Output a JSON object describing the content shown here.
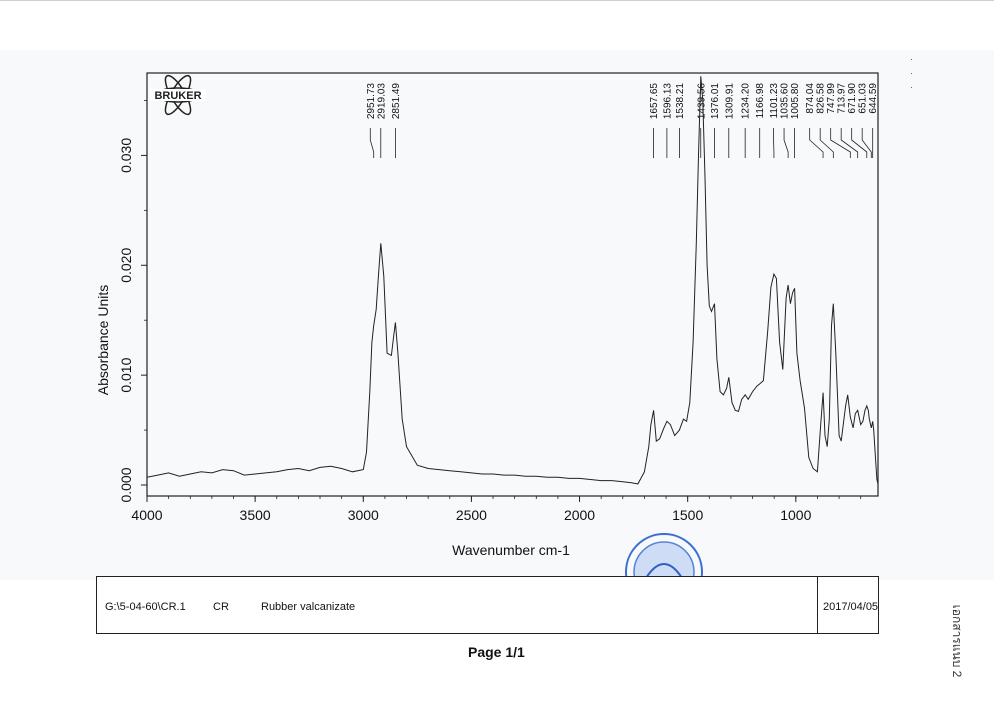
{
  "logo": {
    "text": "BRUKER"
  },
  "chart_data": {
    "type": "line",
    "xlabel": "Wavenumber cm-1",
    "ylabel": "Absorbance Units",
    "xlim": [
      4000,
      620
    ],
    "ylim": [
      -0.001,
      0.0375
    ],
    "x_reversed": true,
    "x_ticks": [
      "4000",
      "3500",
      "3000",
      "2500",
      "2000",
      "1500",
      "1000"
    ],
    "y_ticks": [
      "0.000",
      "0.010",
      "0.020",
      "0.030"
    ],
    "grid": false,
    "series": [
      {
        "x": [
          4000,
          3950,
          3900,
          3850,
          3800,
          3750,
          3700,
          3650,
          3600,
          3550,
          3500,
          3450,
          3400,
          3350,
          3300,
          3250,
          3200,
          3150,
          3100,
          3050,
          3000,
          2985,
          2970,
          2960,
          2951.73,
          2940,
          2930,
          2919.03,
          2905,
          2890,
          2870,
          2860,
          2851.49,
          2840,
          2820,
          2800,
          2750,
          2700,
          2650,
          2600,
          2550,
          2500,
          2450,
          2400,
          2350,
          2300,
          2250,
          2200,
          2150,
          2100,
          2050,
          2000,
          1950,
          1900,
          1850,
          1800,
          1760,
          1730,
          1700,
          1680,
          1670,
          1657.65,
          1645,
          1630,
          1610,
          1596.13,
          1580,
          1560,
          1538.21,
          1520,
          1505,
          1490,
          1475,
          1460,
          1450,
          1439.56,
          1430,
          1420,
          1410,
          1400,
          1390,
          1376.01,
          1365,
          1350,
          1335,
          1320,
          1309.91,
          1295,
          1280,
          1265,
          1250,
          1234.2,
          1220,
          1200,
          1180,
          1166.98,
          1150,
          1130,
          1115,
          1101.23,
          1090,
          1075,
          1060,
          1045,
          1035.6,
          1025,
          1015,
          1005.8,
          995,
          980,
          960,
          940,
          920,
          900,
          885,
          874.04,
          865,
          855,
          845,
          835,
          826.58,
          815,
          800,
          790,
          770,
          760,
          747.99,
          735,
          725,
          713.97,
          700,
          690,
          680,
          671.9,
          665,
          660,
          651.03,
          644.59,
          640,
          630,
          625,
          620
        ],
        "y": [
          0.0007,
          0.0009,
          0.0011,
          0.0008,
          0.001,
          0.0012,
          0.0011,
          0.0014,
          0.0013,
          0.0009,
          0.001,
          0.0011,
          0.0012,
          0.0014,
          0.0015,
          0.0013,
          0.0016,
          0.0017,
          0.0015,
          0.0012,
          0.0014,
          0.003,
          0.0085,
          0.013,
          0.0145,
          0.016,
          0.019,
          0.022,
          0.019,
          0.012,
          0.0118,
          0.0135,
          0.0148,
          0.012,
          0.006,
          0.0035,
          0.0018,
          0.0015,
          0.0014,
          0.0013,
          0.0012,
          0.0011,
          0.001,
          0.001,
          0.0009,
          0.0009,
          0.0008,
          0.0008,
          0.0007,
          0.0007,
          0.0006,
          0.0006,
          0.0005,
          0.0004,
          0.0004,
          0.0003,
          0.0002,
          0.0001,
          0.0012,
          0.0035,
          0.0055,
          0.0068,
          0.004,
          0.0042,
          0.0052,
          0.0058,
          0.0055,
          0.0045,
          0.005,
          0.006,
          0.0058,
          0.0075,
          0.013,
          0.022,
          0.03,
          0.0372,
          0.035,
          0.028,
          0.02,
          0.0163,
          0.0158,
          0.0165,
          0.0115,
          0.0085,
          0.0082,
          0.0088,
          0.0098,
          0.0075,
          0.0068,
          0.0067,
          0.0078,
          0.0082,
          0.0078,
          0.0085,
          0.009,
          0.0092,
          0.0095,
          0.014,
          0.018,
          0.0192,
          0.0188,
          0.013,
          0.0105,
          0.017,
          0.0182,
          0.0165,
          0.0175,
          0.0179,
          0.012,
          0.0095,
          0.007,
          0.0025,
          0.0015,
          0.0012,
          0.0055,
          0.0084,
          0.0045,
          0.0035,
          0.006,
          0.0145,
          0.0165,
          0.012,
          0.0045,
          0.004,
          0.0072,
          0.0082,
          0.0062,
          0.0052,
          0.0065,
          0.0068,
          0.0055,
          0.0058,
          0.0068,
          0.0072,
          0.0068,
          0.006,
          0.0052,
          0.0058,
          0.005,
          0.002,
          0.0005,
          0.0001
        ]
      }
    ],
    "peak_labels": [
      "2951.73",
      "2919.03",
      "2851.49",
      "1657.65",
      "1596.13",
      "1538.21",
      "1439.56",
      "1376.01",
      "1309.91",
      "1234.20",
      "1166.98",
      "1101.23",
      "1035.60",
      "1005.80",
      "874.04",
      "826.58",
      "747.99",
      "713.97",
      "671.90",
      "651.03",
      "644.59"
    ]
  },
  "footer": {
    "path": "G:\\5-04-60\\CR.1",
    "code": "CR",
    "description": "Rubber valcanizate",
    "date": "2017/04/05"
  },
  "page_label": "Page 1/1",
  "side_label": "เอกสารแนบ 2",
  "colors": {
    "line": "#222222",
    "stamp": "#3b6fd1"
  }
}
